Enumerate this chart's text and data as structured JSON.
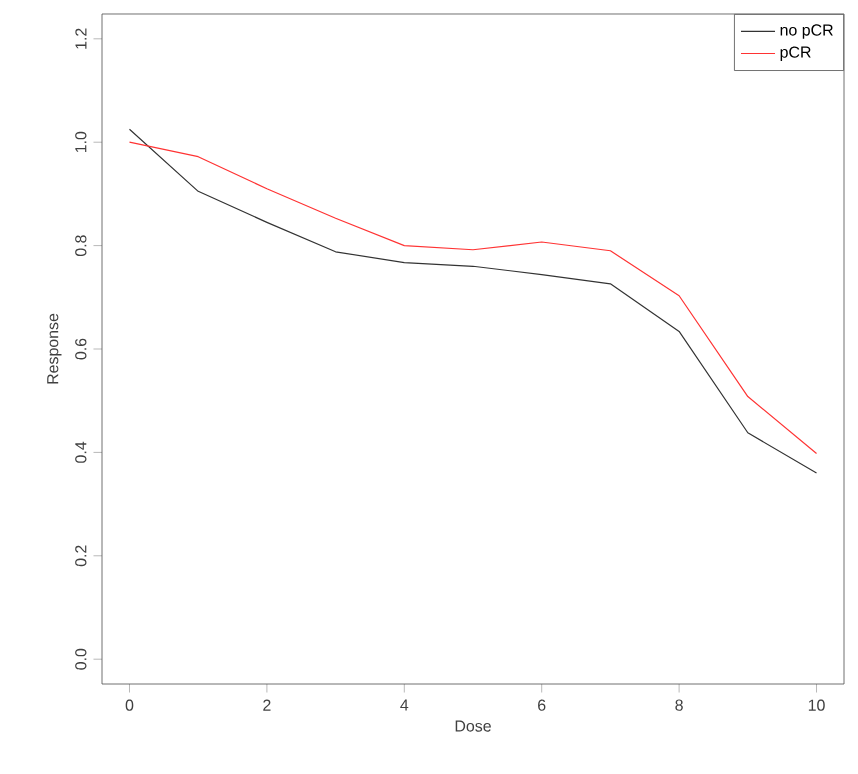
{
  "chart_data": {
    "type": "line",
    "xlabel": "Dose",
    "ylabel": "Response",
    "x": [
      0,
      1,
      2,
      3,
      4,
      5,
      6,
      7,
      8,
      9,
      10
    ],
    "series": [
      {
        "name": "no pCR",
        "color": "#333333",
        "values": [
          1.025,
          0.905,
          0.845,
          0.788,
          0.767,
          0.76,
          0.744,
          0.726,
          0.634,
          0.438,
          0.36
        ]
      },
      {
        "name": "pCR",
        "color": "#ff3333",
        "values": [
          1.0,
          0.972,
          0.91,
          0.853,
          0.8,
          0.792,
          0.807,
          0.79,
          0.703,
          0.508,
          0.398
        ]
      }
    ],
    "xlim": [
      -0.4,
      10.4
    ],
    "ylim": [
      -0.048,
      1.248
    ],
    "xticks": [
      0,
      2,
      4,
      6,
      8,
      10
    ],
    "yticks": [
      {
        "value": 0,
        "label": "0.0"
      },
      0.2,
      0.4,
      0.6,
      0.8,
      {
        "value": 1,
        "label": "1.0"
      },
      1.2
    ],
    "legend": "top right",
    "grid": false,
    "marker": "none",
    "line_style": "solid"
  }
}
